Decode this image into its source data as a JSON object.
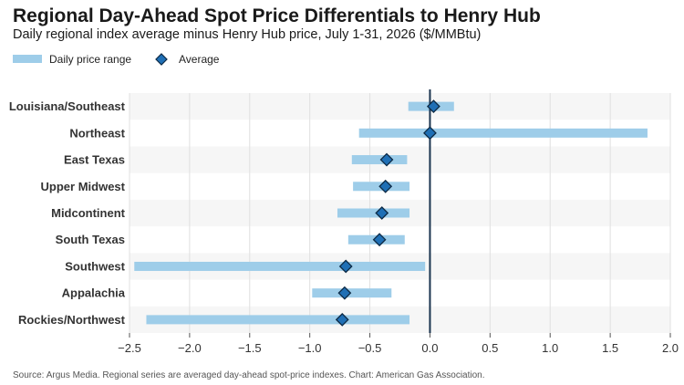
{
  "chart_data": {
    "type": "range-dot",
    "title": "Regional Day-Ahead Spot Price Differentials to Henry Hub",
    "subtitle": "Daily regional index average minus Henry Hub price, July 1-31, 2026 ($/MMBtu)",
    "legend": {
      "range_label": "Daily price range",
      "average_label": "Average",
      "placement": "top-left"
    },
    "categories": [
      "Louisiana/Southeast",
      "Northeast",
      "East Texas",
      "Upper Midwest",
      "Midcontinent",
      "South Texas",
      "Southwest",
      "Appalachia",
      "Rockies/Northwest"
    ],
    "series": [
      {
        "name": "Daily price range",
        "min": [
          -0.18,
          -0.59,
          -0.65,
          -0.64,
          -0.77,
          -0.68,
          -2.46,
          -0.98,
          -2.36
        ],
        "max": [
          0.2,
          1.81,
          -0.19,
          -0.17,
          -0.17,
          -0.21,
          -0.04,
          -0.32,
          -0.17
        ]
      },
      {
        "name": "Average",
        "values": [
          0.03,
          0.0,
          -0.36,
          -0.37,
          -0.4,
          -0.42,
          -0.7,
          -0.71,
          -0.73
        ]
      }
    ],
    "xlim": [
      -2.5,
      2.0
    ],
    "xticks": [
      -2.5,
      -2.0,
      -1.5,
      -1.0,
      -0.5,
      0.0,
      0.5,
      1.0,
      1.5,
      2.0
    ],
    "xtick_labels": [
      "−2.5",
      "−2.0",
      "−1.5",
      "−1.0",
      "−0.5",
      "0.0",
      "0.5",
      "1.0",
      "1.5",
      "2.0"
    ],
    "grid": true,
    "zero_line": true,
    "colors": {
      "range": "#9ecde9",
      "marker_fill": "#1f6fb5",
      "marker_edge": "#0d2a45",
      "zero_line": "#1b3550",
      "band": "#f6f6f6",
      "grid": "#e0e0e0"
    },
    "source": "Source: Argus Media. Regional series are averaged day-ahead spot-price indexes. Chart: American Gas Association."
  }
}
